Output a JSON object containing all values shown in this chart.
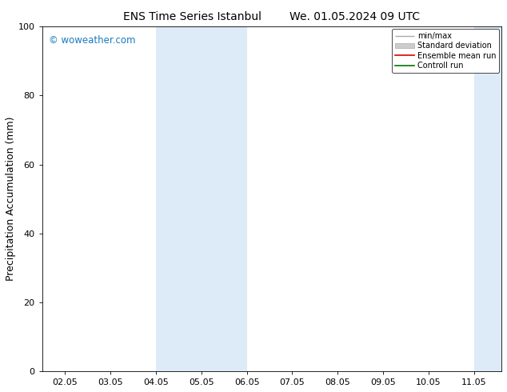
{
  "title": "ENS Time Series Istanbul",
  "title2": "We. 01.05.2024 09 UTC",
  "ylabel": "Precipitation Accumulation (mm)",
  "ylim": [
    0,
    100
  ],
  "yticks": [
    0,
    20,
    40,
    60,
    80,
    100
  ],
  "x_tick_labels": [
    "02.05",
    "03.05",
    "04.05",
    "05.05",
    "06.05",
    "07.05",
    "08.05",
    "09.05",
    "10.05",
    "11.05"
  ],
  "x_tick_positions": [
    1,
    2,
    3,
    4,
    5,
    6,
    7,
    8,
    9,
    10
  ],
  "watermark": "© woweather.com",
  "watermark_color": "#1a7abf",
  "shaded_bands": [
    {
      "x_start": 3.0,
      "x_end": 5.0,
      "color": "#ddeaf8"
    },
    {
      "x_start": 10.0,
      "x_end": 10.6,
      "color": "#ddeaf8"
    }
  ],
  "legend_items": [
    {
      "label": "min/max",
      "color": "#aaaaaa",
      "type": "errorbar"
    },
    {
      "label": "Standard deviation",
      "color": "#cccccc",
      "type": "bar"
    },
    {
      "label": "Ensemble mean run",
      "color": "#dd0000",
      "type": "line"
    },
    {
      "label": "Controll run",
      "color": "#007700",
      "type": "line"
    }
  ],
  "background_color": "#ffffff",
  "xlim": [
    0.5,
    10.6
  ],
  "title_fontsize": 10,
  "tick_fontsize": 8,
  "ylabel_fontsize": 9
}
